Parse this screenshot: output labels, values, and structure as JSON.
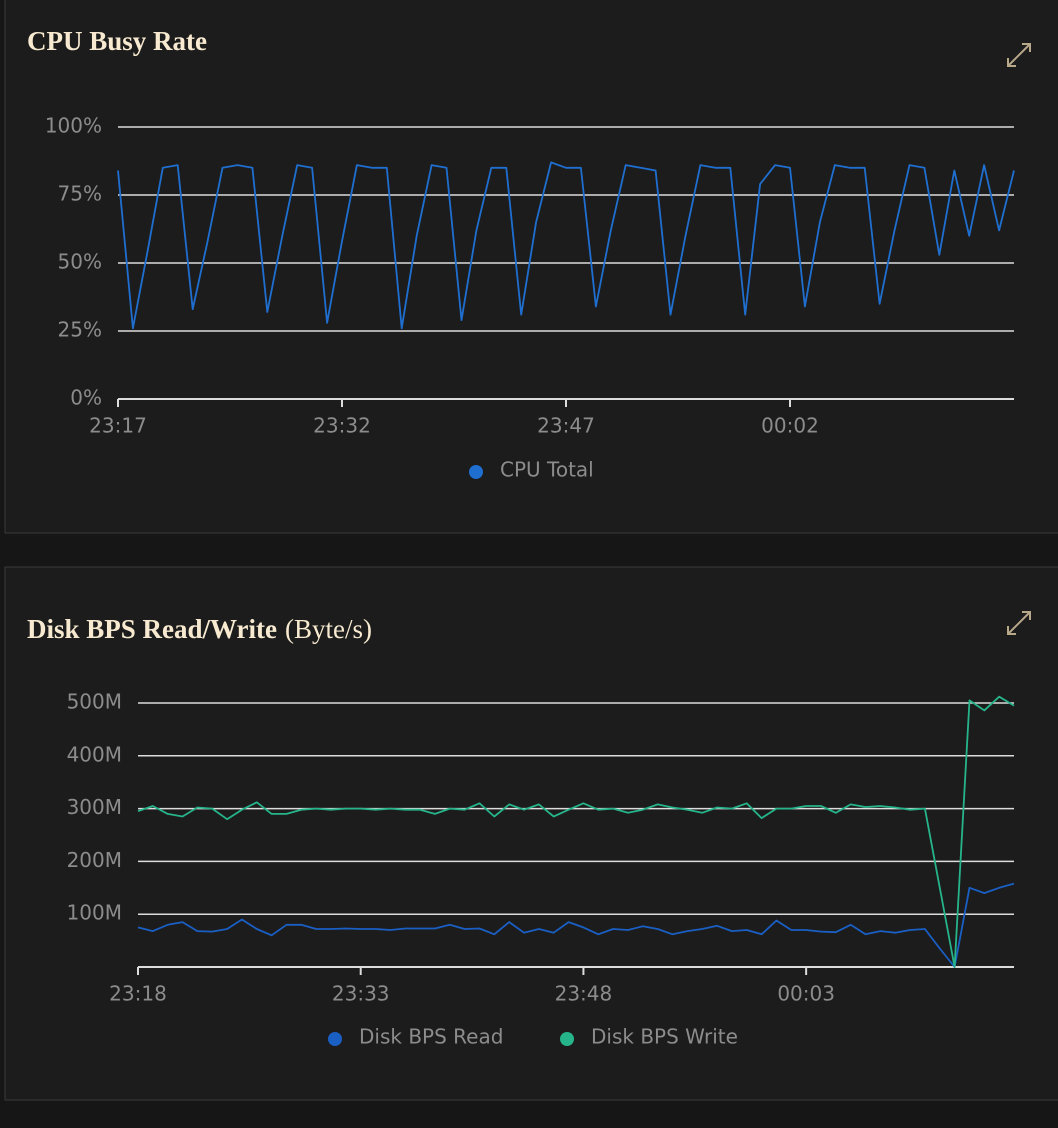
{
  "chart_data": [
    {
      "type": "line",
      "title": "CPU Busy Rate",
      "x": [
        "23:17",
        "23:18",
        "23:19",
        "23:20",
        "23:21",
        "23:22",
        "23:23",
        "23:24",
        "23:25",
        "23:26",
        "23:27",
        "23:28",
        "23:29",
        "23:30",
        "23:31",
        "23:32",
        "23:33",
        "23:34",
        "23:35",
        "23:36",
        "23:37",
        "23:38",
        "23:39",
        "23:40",
        "23:41",
        "23:42",
        "23:43",
        "23:44",
        "23:45",
        "23:46",
        "23:47",
        "23:48",
        "23:49",
        "23:50",
        "23:51",
        "23:52",
        "23:53",
        "23:54",
        "23:55",
        "23:56",
        "23:57",
        "23:58",
        "23:59",
        "00:00",
        "00:01",
        "00:02",
        "00:03",
        "00:04",
        "00:05",
        "00:06",
        "00:07",
        "00:08",
        "00:09",
        "00:10",
        "00:11",
        "00:12",
        "00:13",
        "00:14",
        "00:15",
        "00:16",
        "00:17"
      ],
      "series": [
        {
          "name": "CPU Total",
          "color": "#1f6fd1",
          "values": [
            84,
            26,
            55,
            85,
            86,
            33,
            58,
            85,
            86,
            85,
            32,
            60,
            86,
            85,
            28,
            58,
            86,
            85,
            85,
            26,
            60,
            86,
            85,
            29,
            62,
            85,
            85,
            31,
            65,
            87,
            85,
            85,
            34,
            62,
            86,
            85,
            84,
            31,
            60,
            86,
            85,
            85,
            31,
            79,
            86,
            85,
            34,
            65,
            86,
            85,
            85,
            35,
            62,
            86,
            85,
            53,
            84,
            60,
            86,
            62,
            84
          ]
        }
      ],
      "xlim": [
        "23:17",
        "00:17"
      ],
      "xticks": [
        "23:17",
        "23:32",
        "23:47",
        "00:02"
      ],
      "ylim": [
        0,
        100
      ],
      "yticks": [
        {
          "value": 0,
          "label": "0%"
        },
        {
          "value": 25,
          "label": "25%"
        },
        {
          "value": 50,
          "label": "50%"
        },
        {
          "value": 75,
          "label": "75%"
        },
        {
          "value": 100,
          "label": "100%"
        }
      ],
      "grid": true,
      "legend": "bottom"
    },
    {
      "type": "line",
      "title": "Disk BPS Read/Write",
      "subtitle": "(Byte/s)",
      "x": [
        "23:18",
        "23:19",
        "23:20",
        "23:21",
        "23:22",
        "23:23",
        "23:24",
        "23:25",
        "23:26",
        "23:27",
        "23:28",
        "23:29",
        "23:30",
        "23:31",
        "23:32",
        "23:33",
        "23:34",
        "23:35",
        "23:36",
        "23:37",
        "23:38",
        "23:39",
        "23:40",
        "23:41",
        "23:42",
        "23:43",
        "23:44",
        "23:45",
        "23:46",
        "23:47",
        "23:48",
        "23:49",
        "23:50",
        "23:51",
        "23:52",
        "23:53",
        "23:54",
        "23:55",
        "23:56",
        "23:57",
        "23:58",
        "23:59",
        "00:00",
        "00:01",
        "00:02",
        "00:03",
        "00:04",
        "00:05",
        "00:06",
        "00:07",
        "00:08",
        "00:09",
        "00:10",
        "00:11",
        "00:12",
        "00:13",
        "00:14",
        "00:15",
        "00:16",
        "00:17"
      ],
      "series": [
        {
          "name": "Disk BPS Read",
          "color": "#1a5fc4",
          "values": [
            75000000,
            68000000,
            80000000,
            85000000,
            68000000,
            67000000,
            72000000,
            90000000,
            72000000,
            60000000,
            80000000,
            80000000,
            72000000,
            72000000,
            73000000,
            72000000,
            72000000,
            70000000,
            73000000,
            73000000,
            73000000,
            80000000,
            72000000,
            73000000,
            62000000,
            85000000,
            65000000,
            72000000,
            65000000,
            85000000,
            75000000,
            62000000,
            72000000,
            70000000,
            77000000,
            72000000,
            62000000,
            68000000,
            72000000,
            78000000,
            68000000,
            70000000,
            62000000,
            88000000,
            70000000,
            70000000,
            67000000,
            66000000,
            80000000,
            62000000,
            68000000,
            65000000,
            70000000,
            72000000,
            35000000,
            0,
            150000000,
            140000000,
            150000000,
            158000000
          ]
        },
        {
          "name": "Disk BPS Write",
          "color": "#26b48a",
          "values": [
            295000000,
            305000000,
            290000000,
            285000000,
            302000000,
            300000000,
            280000000,
            298000000,
            312000000,
            290000000,
            290000000,
            298000000,
            300000000,
            298000000,
            300000000,
            300000000,
            298000000,
            300000000,
            298000000,
            298000000,
            290000000,
            300000000,
            298000000,
            310000000,
            285000000,
            308000000,
            298000000,
            308000000,
            285000000,
            298000000,
            310000000,
            298000000,
            300000000,
            292000000,
            298000000,
            308000000,
            302000000,
            298000000,
            292000000,
            302000000,
            300000000,
            310000000,
            282000000,
            300000000,
            300000000,
            305000000,
            305000000,
            292000000,
            308000000,
            303000000,
            305000000,
            302000000,
            298000000,
            300000000,
            150000000,
            0,
            505000000,
            486000000,
            512000000,
            495000000
          ]
        }
      ],
      "xlim": [
        "23:18",
        "00:17"
      ],
      "xticks": [
        "23:18",
        "23:33",
        "23:48",
        "00:03"
      ],
      "ylim": [
        0,
        500000000
      ],
      "yticks": [
        {
          "value": 100000000,
          "label": "100M"
        },
        {
          "value": 200000000,
          "label": "200M"
        },
        {
          "value": 300000000,
          "label": "300M"
        },
        {
          "value": 400000000,
          "label": "400M"
        },
        {
          "value": 500000000,
          "label": "500M"
        }
      ],
      "grid": true,
      "legend": "bottom"
    }
  ]
}
